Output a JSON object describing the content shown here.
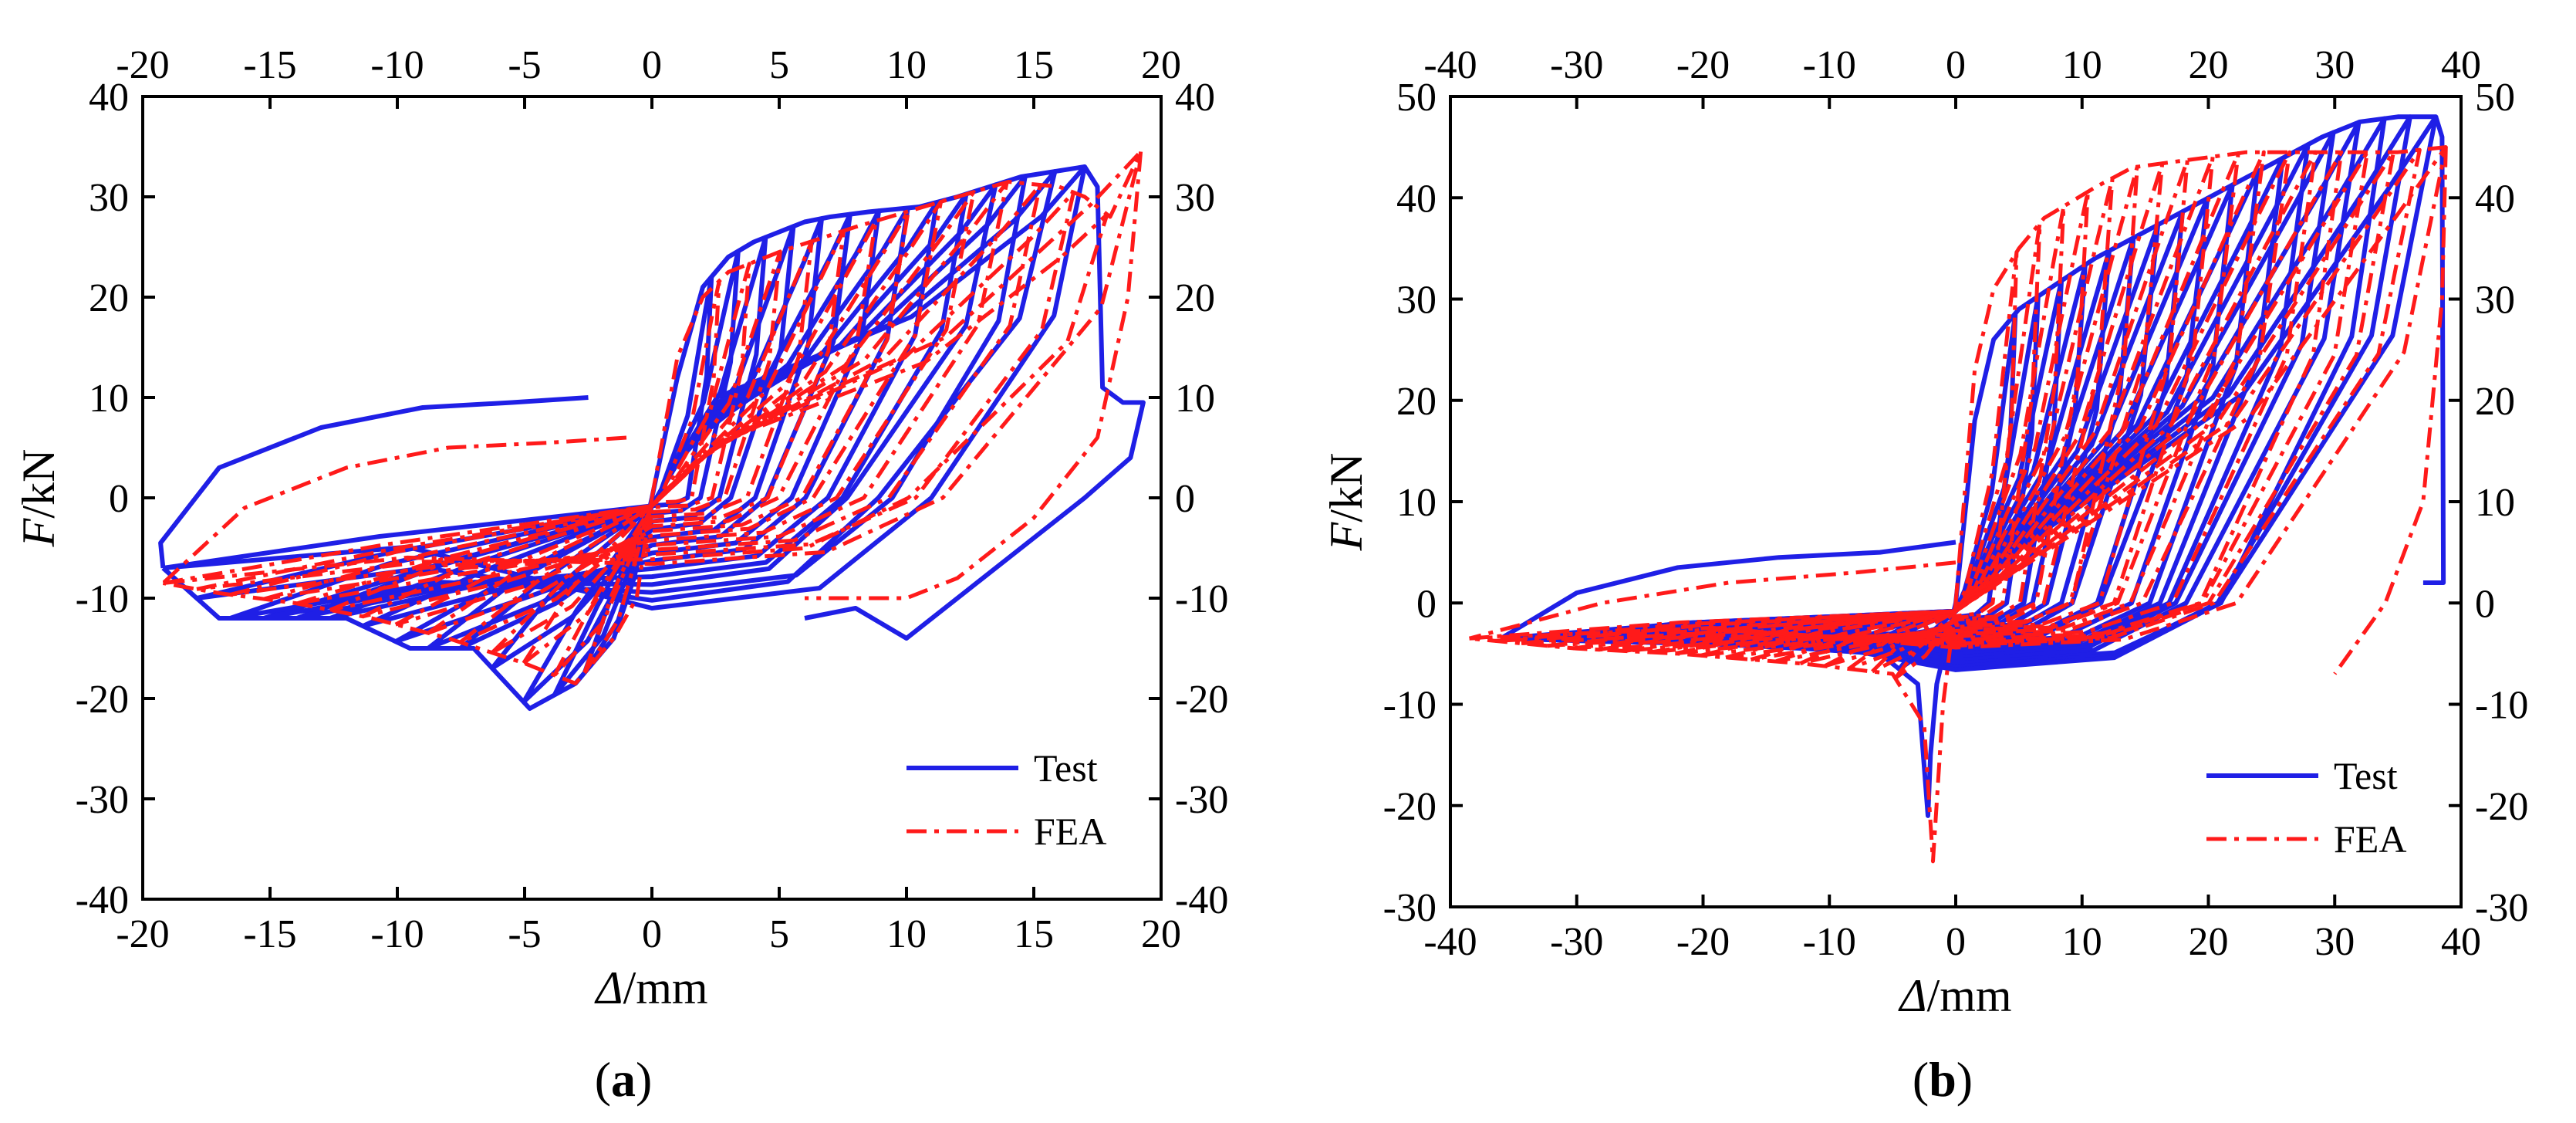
{
  "chart_data": [
    {
      "type": "line",
      "panel_label": "(a)",
      "panel_letter": "a",
      "xlabel_symbol": "Δ",
      "xlabel_unit": "/mm",
      "ylabel_symbol": "F",
      "ylabel_unit": "/kN",
      "xlim": [
        -20,
        20
      ],
      "ylim": [
        -40,
        40
      ],
      "xticks": [
        -20,
        -15,
        -10,
        -5,
        0,
        5,
        10,
        15,
        20
      ],
      "yticks": [
        -40,
        -30,
        -20,
        -10,
        0,
        10,
        20,
        30,
        40
      ],
      "mirror_ticks_top_right": true,
      "grid": false,
      "legend_position": "bottom-right",
      "series": [
        {
          "name": "Test",
          "color": "#1f1fe6",
          "style": "solid",
          "envelope_positive": [
            [
              0,
              0
            ],
            [
              1,
              12
            ],
            [
              2,
              21
            ],
            [
              3,
              24
            ],
            [
              4,
              25.5
            ],
            [
              5,
              26.5
            ],
            [
              6,
              27.5
            ],
            [
              7,
              28
            ],
            [
              8.5,
              28.5
            ],
            [
              10.5,
              29
            ],
            [
              12,
              30
            ],
            [
              14.5,
              32
            ],
            [
              17,
              33
            ]
          ],
          "envelope_negative": [
            [
              0,
              0
            ],
            [
              -0.7,
              -8
            ],
            [
              -1.5,
              -14
            ],
            [
              -3,
              -18.5
            ],
            [
              -4.8,
              -21
            ],
            [
              -7,
              -15
            ],
            [
              -9.5,
              -15
            ],
            [
              -12,
              -12
            ],
            [
              -14.5,
              -12
            ],
            [
              -17,
              -12
            ],
            [
              -19.2,
              -7
            ]
          ],
          "unloading_positive": [
            [
              8.5,
              28.5,
              5,
              0
            ],
            [
              10.5,
              29,
              6,
              0
            ],
            [
              12,
              30,
              7.5,
              0
            ],
            [
              14.5,
              32,
              9.5,
              0
            ],
            [
              17,
              33,
              11.5,
              0
            ]
          ],
          "final_branch": [
            [
              17,
              33
            ],
            [
              17.5,
              31
            ],
            [
              17.7,
              11
            ],
            [
              18.5,
              9.5
            ],
            [
              19.3,
              9.5
            ],
            [
              18.8,
              4
            ],
            [
              17,
              0
            ],
            [
              13,
              -8
            ],
            [
              10,
              -14
            ],
            [
              8,
              -11
            ],
            [
              6,
              -12
            ]
          ],
          "reloading_to_negative": [
            [
              -2.5,
              10
            ],
            [
              -5.5,
              9.5
            ],
            [
              -9,
              9
            ],
            [
              -13,
              7
            ],
            [
              -17,
              3
            ],
            [
              -19.3,
              -4.5
            ],
            [
              -19.2,
              -7
            ]
          ]
        },
        {
          "name": "FEA",
          "color": "#ff1a1a",
          "style": "dash-dot",
          "envelope_positive": [
            [
              0,
              0
            ],
            [
              1,
              14
            ],
            [
              2,
              20
            ],
            [
              3,
              22.5
            ],
            [
              5,
              24.5
            ],
            [
              8,
              27
            ],
            [
              10,
              28.5
            ],
            [
              12,
              30
            ],
            [
              14,
              31.5
            ],
            [
              16,
              31
            ],
            [
              17,
              30
            ],
            [
              18,
              28
            ],
            [
              19.2,
              34.5
            ]
          ],
          "envelope_negative": [
            [
              0,
              0
            ],
            [
              -0.6,
              -10
            ],
            [
              -1.5,
              -14
            ],
            [
              -3,
              -18.5
            ],
            [
              -5,
              -16.5
            ],
            [
              -8,
              -14
            ],
            [
              -11,
              -12
            ],
            [
              -14,
              -10.5
            ],
            [
              -17,
              -9.5
            ],
            [
              -19.2,
              -8.5
            ]
          ],
          "final_branch": [
            [
              19.2,
              34.5
            ],
            [
              18.7,
              20
            ],
            [
              17.5,
              6
            ],
            [
              15,
              -2
            ],
            [
              12,
              -8
            ],
            [
              10,
              -10
            ],
            [
              6,
              -10
            ]
          ],
          "reloading_to_negative": [
            [
              -1,
              6
            ],
            [
              -4,
              5.5
            ],
            [
              -8,
              5
            ],
            [
              -12,
              3
            ],
            [
              -16,
              -1
            ],
            [
              -19.2,
              -8.5
            ]
          ]
        }
      ]
    },
    {
      "type": "line",
      "panel_label": "(b)",
      "panel_letter": "b",
      "xlabel_symbol": "Δ",
      "xlabel_unit": "/mm",
      "ylabel_symbol": "F",
      "ylabel_unit": "/kN",
      "xlim": [
        -40,
        40
      ],
      "ylim": [
        -30,
        50
      ],
      "xticks": [
        -40,
        -30,
        -20,
        -10,
        0,
        10,
        20,
        30,
        40
      ],
      "yticks": [
        -30,
        -20,
        -10,
        0,
        10,
        20,
        30,
        40,
        50
      ],
      "mirror_ticks_top_right": true,
      "grid": false,
      "legend_position": "bottom-right",
      "series": [
        {
          "name": "Test",
          "color": "#1f1fe6",
          "style": "solid",
          "envelope_positive": [
            [
              0,
              0
            ],
            [
              1.5,
              18
            ],
            [
              3,
              26
            ],
            [
              5,
              29
            ],
            [
              8,
              31.5
            ],
            [
              11,
              34
            ],
            [
              14,
              36
            ],
            [
              17,
              38
            ],
            [
              20,
              40
            ],
            [
              23,
              42
            ],
            [
              26,
              44
            ],
            [
              29,
              46
            ],
            [
              32,
              47.5
            ],
            [
              35,
              48
            ],
            [
              38,
              48
            ]
          ],
          "envelope_negative": [
            [
              0,
              0
            ],
            [
              -1.5,
              -8
            ],
            [
              -2,
              -15
            ],
            [
              -2.2,
              -21
            ],
            [
              -3,
              -8
            ],
            [
              -6,
              -5
            ],
            [
              -12,
              -4.5
            ],
            [
              -20,
              -4
            ],
            [
              -28,
              -3.8
            ],
            [
              -36,
              -3.5
            ]
          ],
          "final_branch": [
            [
              38,
              48
            ],
            [
              38.5,
              46
            ],
            [
              38.6,
              2
            ],
            [
              37,
              2
            ]
          ],
          "reloading_to_negative": [
            [
              0,
              6
            ],
            [
              -6,
              5
            ],
            [
              -14,
              4.5
            ],
            [
              -22,
              3.5
            ],
            [
              -30,
              1
            ],
            [
              -36,
              -3.5
            ]
          ]
        },
        {
          "name": "FEA",
          "color": "#ff1a1a",
          "style": "dash-dot",
          "envelope_positive": [
            [
              0,
              0
            ],
            [
              1.5,
              23
            ],
            [
              3,
              31
            ],
            [
              5,
              35
            ],
            [
              7,
              38
            ],
            [
              9,
              39.5
            ],
            [
              11,
              41
            ],
            [
              14,
              43
            ],
            [
              17,
              43.5
            ],
            [
              20,
              44
            ],
            [
              23,
              44.5
            ],
            [
              26,
              44.5
            ],
            [
              29,
              44.5
            ],
            [
              32,
              44.5
            ],
            [
              35,
              44.5
            ],
            [
              38.8,
              45
            ]
          ],
          "envelope_negative": [
            [
              0,
              0
            ],
            [
              -1,
              -10
            ],
            [
              -1.8,
              -25.5
            ],
            [
              -2.5,
              -12
            ],
            [
              -5,
              -7
            ],
            [
              -12,
              -6
            ],
            [
              -22,
              -5
            ],
            [
              -30,
              -4.5
            ],
            [
              -38.5,
              -3.5
            ]
          ],
          "final_branch": [
            [
              38.8,
              45
            ],
            [
              38.5,
              30
            ],
            [
              37,
              10
            ],
            [
              34,
              0
            ],
            [
              30,
              -7
            ]
          ],
          "reloading_to_negative": [
            [
              0,
              4
            ],
            [
              -8,
              3
            ],
            [
              -18,
              2
            ],
            [
              -28,
              0
            ],
            [
              -38.5,
              -3.5
            ]
          ]
        }
      ]
    }
  ]
}
